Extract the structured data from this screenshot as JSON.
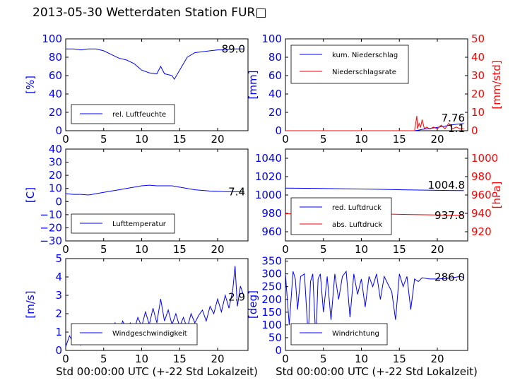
{
  "title": "2013-05-30 Wetterdaten Station FUR□",
  "xlabel": "Std 00:00:00 UTC (+-22 Std Lokalzeit)",
  "colors": {
    "primary": "#0000ff",
    "secondary": "#ff0000",
    "axis": "#000000"
  },
  "chart_data": [
    {
      "type": "line",
      "ylabel": "[%]",
      "xlim": [
        0,
        24
      ],
      "ylim": [
        0,
        100
      ],
      "xticks": [
        0,
        5,
        10,
        15,
        20
      ],
      "yticks": [
        0,
        20,
        40,
        60,
        80,
        100
      ],
      "legend": "bottom-left",
      "last_value_label": "89.0",
      "series": [
        {
          "name": "rel. Luftfeuchte",
          "color": "#0000ff",
          "x": [
            0,
            1,
            2,
            3,
            4,
            5,
            6,
            7,
            8,
            9,
            10,
            11,
            12,
            12.5,
            13,
            14,
            14.3,
            15,
            16,
            17,
            18,
            19,
            20,
            21,
            22,
            23,
            23.5
          ],
          "y": [
            89,
            89,
            88,
            89,
            89,
            87,
            83,
            79,
            77,
            73,
            66,
            63,
            62,
            70,
            62,
            60,
            56,
            66,
            80,
            85,
            86,
            87,
            88,
            88,
            89,
            89,
            89
          ]
        }
      ]
    },
    {
      "type": "line",
      "ylabel": "[mm]",
      "y2label": "[mm/std]",
      "xlim": [
        0,
        24
      ],
      "ylim": [
        0,
        100
      ],
      "y2lim": [
        0,
        50
      ],
      "xticks": [
        0,
        5,
        10,
        15,
        20
      ],
      "yticks": [
        0,
        20,
        40,
        60,
        80,
        100
      ],
      "y2ticks": [
        0,
        10,
        20,
        30,
        40,
        50
      ],
      "legend": "top-left",
      "last_value_labels": [
        "7.76",
        "1.1"
      ],
      "series": [
        {
          "name": "kum. Niederschlag",
          "color": "#0000ff",
          "axis": "left",
          "x": [
            0,
            17,
            17.5,
            18,
            19,
            20,
            21,
            22,
            23,
            23.5
          ],
          "y": [
            0,
            0,
            0.5,
            1.5,
            2.5,
            3.5,
            5,
            6.5,
            7.5,
            7.76
          ]
        },
        {
          "name": "Niederschlagsrate",
          "color": "#ff0000",
          "axis": "right",
          "x": [
            0,
            17,
            17.3,
            17.4,
            17.6,
            17.8,
            18,
            18.3,
            18.6,
            19,
            19.5,
            20,
            20.5,
            21,
            21.5,
            22,
            22.5,
            23,
            23.5
          ],
          "y": [
            0,
            0,
            8,
            1,
            4,
            2,
            6,
            1,
            2,
            1,
            2,
            1,
            3,
            1,
            4,
            1,
            2,
            1,
            1.1
          ]
        }
      ]
    },
    {
      "type": "line",
      "ylabel": "[C]",
      "xlim": [
        0,
        24
      ],
      "ylim": [
        -30,
        40
      ],
      "xticks": [
        0,
        5,
        10,
        15,
        20
      ],
      "yticks": [
        -30,
        -20,
        -10,
        0,
        10,
        20,
        30,
        40
      ],
      "legend": "bottom-left",
      "last_value_label": "7.4",
      "series": [
        {
          "name": "Lufttemperatur",
          "color": "#0000ff",
          "x": [
            0,
            1,
            2,
            3,
            4,
            5,
            6,
            7,
            8,
            9,
            10,
            11,
            12,
            13,
            14,
            15,
            16,
            17,
            18,
            19,
            20,
            21,
            22,
            23,
            23.5
          ],
          "y": [
            6,
            5.5,
            5.5,
            5,
            6,
            7,
            8,
            9,
            10,
            11,
            12,
            12.5,
            12,
            12,
            12,
            11,
            10,
            9,
            8.5,
            8,
            7.8,
            7.6,
            7.5,
            7.4,
            7.4
          ]
        }
      ]
    },
    {
      "type": "line",
      "y2label": "[hPa]",
      "xlim": [
        0,
        24
      ],
      "ylim": [
        950,
        1050
      ],
      "y2lim": [
        910,
        1010
      ],
      "xticks": [
        0,
        5,
        10,
        15,
        20
      ],
      "yticks": [
        960,
        980,
        1000,
        1020,
        1040
      ],
      "y2ticks": [
        920,
        940,
        960,
        980,
        1000
      ],
      "legend": "bottom-left",
      "last_value_labels": [
        "1004.8",
        "937.8"
      ],
      "series": [
        {
          "name": "red. Luftdruck",
          "color": "#0000ff",
          "axis": "left",
          "x": [
            0,
            4,
            8,
            12,
            16,
            20,
            23.5
          ],
          "y": [
            1007.5,
            1007.2,
            1006.8,
            1006.2,
            1005.6,
            1005.1,
            1004.8
          ]
        },
        {
          "name": "abs. Luftdruck",
          "color": "#ff0000",
          "axis": "right",
          "x": [
            0,
            4,
            8,
            12,
            16,
            20,
            23.5
          ],
          "y": [
            939.5,
            939.6,
            939.8,
            939.5,
            938.8,
            938.2,
            937.8
          ]
        }
      ]
    },
    {
      "type": "line",
      "ylabel": "[m/s]",
      "xlim": [
        0,
        24
      ],
      "ylim": [
        0,
        5
      ],
      "xticks": [
        0,
        5,
        10,
        15,
        20
      ],
      "yticks": [
        0,
        1,
        2,
        3,
        4,
        5
      ],
      "legend": "bottom-left",
      "last_value_label": "2.9",
      "series": [
        {
          "name": "Windgeschwindigkeit",
          "color": "#0000ff",
          "x": [
            0,
            0.5,
            1,
            1.5,
            2,
            2.5,
            3,
            3.5,
            4,
            4.5,
            5,
            5.5,
            6,
            6.5,
            7,
            7.5,
            8,
            8.5,
            9,
            9.5,
            10,
            10.5,
            11,
            11.5,
            12,
            12.5,
            13,
            13.5,
            14,
            14.5,
            15,
            15.5,
            16,
            16.5,
            17,
            17.5,
            18,
            18.5,
            19,
            19.5,
            20,
            20.5,
            21,
            21.5,
            22,
            22.3,
            22.6,
            23,
            23.5
          ],
          "y": [
            0.2,
            0.8,
            0.4,
            0.9,
            0.3,
            1.1,
            0.5,
            1.2,
            0.6,
            1.4,
            0.7,
            1.3,
            0.8,
            1.5,
            0.9,
            1.6,
            1.2,
            1.5,
            1.1,
            1.8,
            1.3,
            2.1,
            1.4,
            2.3,
            1.5,
            2.8,
            1.6,
            2.2,
            1.4,
            2.0,
            1.3,
            1.8,
            1.2,
            2.0,
            1.5,
            1.9,
            2.2,
            1.6,
            2.4,
            2.0,
            2.8,
            2.1,
            3.0,
            2.3,
            3.3,
            4.6,
            2.4,
            3.5,
            2.9
          ]
        }
      ]
    },
    {
      "type": "line",
      "ylabel": "[deg]",
      "xlim": [
        0,
        24
      ],
      "ylim": [
        0,
        360
      ],
      "xticks": [
        0,
        5,
        10,
        15,
        20
      ],
      "yticks": [
        0,
        50,
        100,
        150,
        200,
        250,
        300,
        350
      ],
      "legend": "bottom-left",
      "last_value_label": "286.0",
      "series": [
        {
          "name": "Windrichtung",
          "color": "#0000ff",
          "x": [
            0,
            0.5,
            1,
            1.3,
            1.6,
            2,
            2.5,
            3,
            3.3,
            3.6,
            4,
            4.3,
            4.6,
            5,
            5.5,
            6,
            6.5,
            7,
            7.5,
            8,
            8.5,
            9,
            9.5,
            10,
            10.5,
            11,
            11.5,
            12,
            12.5,
            13,
            13.5,
            14,
            14.5,
            15,
            15.5,
            16,
            16.5,
            17,
            17.5,
            18,
            19,
            20,
            21,
            22,
            23,
            23.5
          ],
          "y": [
            300,
            100,
            310,
            280,
            160,
            290,
            300,
            50,
            270,
            300,
            40,
            280,
            300,
            150,
            290,
            120,
            300,
            200,
            290,
            310,
            130,
            300,
            220,
            280,
            170,
            290,
            250,
            300,
            200,
            290,
            260,
            230,
            120,
            300,
            250,
            290,
            160,
            280,
            270,
            285,
            280,
            280,
            282,
            285,
            290,
            286
          ]
        }
      ]
    }
  ]
}
